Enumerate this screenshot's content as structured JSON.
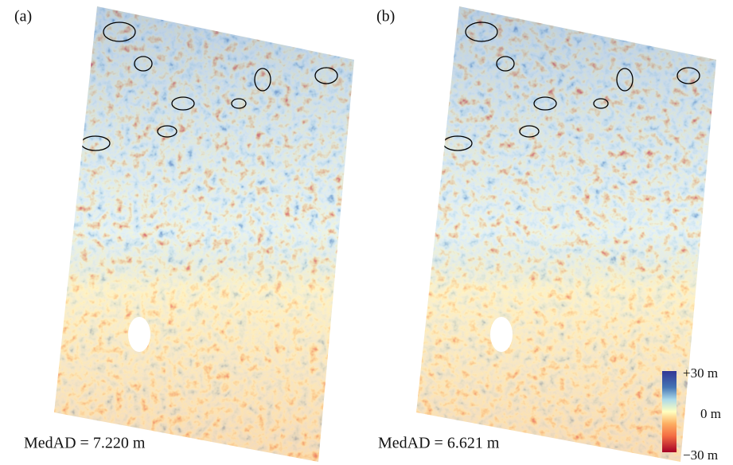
{
  "panels": [
    {
      "label": "(a)",
      "stat": "MedAD = 7.220 m"
    },
    {
      "label": "(b)",
      "stat": "MedAD = 6.621 m"
    }
  ],
  "colorbar": {
    "top": "+30 m",
    "middle": "0 m",
    "bottom": "−30 m"
  }
}
